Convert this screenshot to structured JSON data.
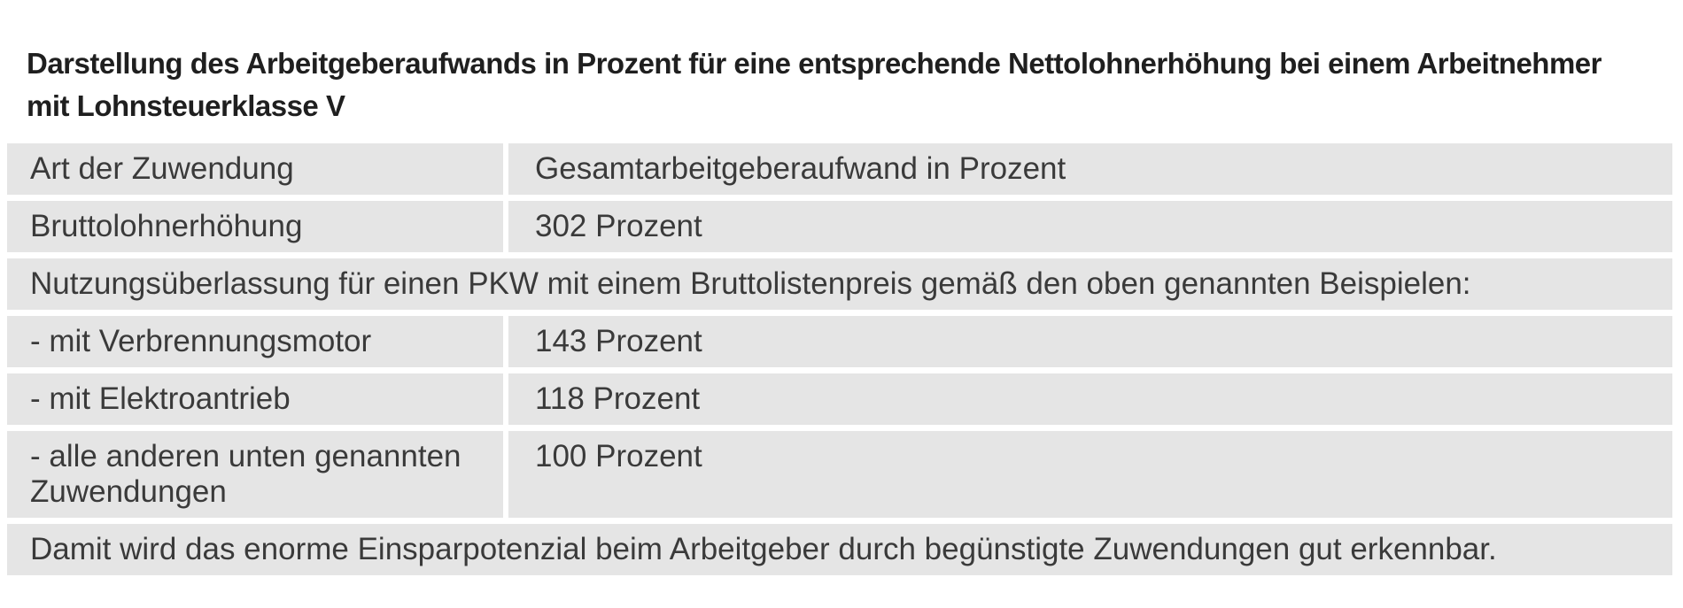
{
  "title": {
    "line1": "Darstellung des Arbeitgeberaufwands in Prozent für eine entsprechende Nettolohnerhöhung bei einem Arbeitnehmer",
    "line2": "mit Lohnsteuerklasse V"
  },
  "table": {
    "rows": [
      {
        "col1": "Art der Zuwendung",
        "col2": "Gesamtarbeitgeberaufwand in Prozent"
      },
      {
        "col1": "Bruttolohnerhöhung",
        "col2": "302 Prozent"
      },
      {
        "full": "Nutzungsüberlassung für einen PKW mit einem Bruttolistenpreis gemäß den oben genannten Beispielen:"
      },
      {
        "col1": "- mit Verbrennungsmotor",
        "col2": "143 Prozent"
      },
      {
        "col1": "- mit Elektroantrieb",
        "col2": "118 Prozent"
      },
      {
        "col1": "- alle anderen unten genannten Zuwendungen",
        "col2": "100 Prozent"
      },
      {
        "full": "Damit wird das enorme Einsparpotenzial beim Arbeitgeber durch begünstigte Zuwendungen gut erkennbar."
      }
    ]
  },
  "colors": {
    "page_background": "#ffffff",
    "row_background": "#e5e5e5",
    "divider": "#ffffff",
    "title_text": "#1f1f1f",
    "body_text": "#3a3a3a"
  }
}
